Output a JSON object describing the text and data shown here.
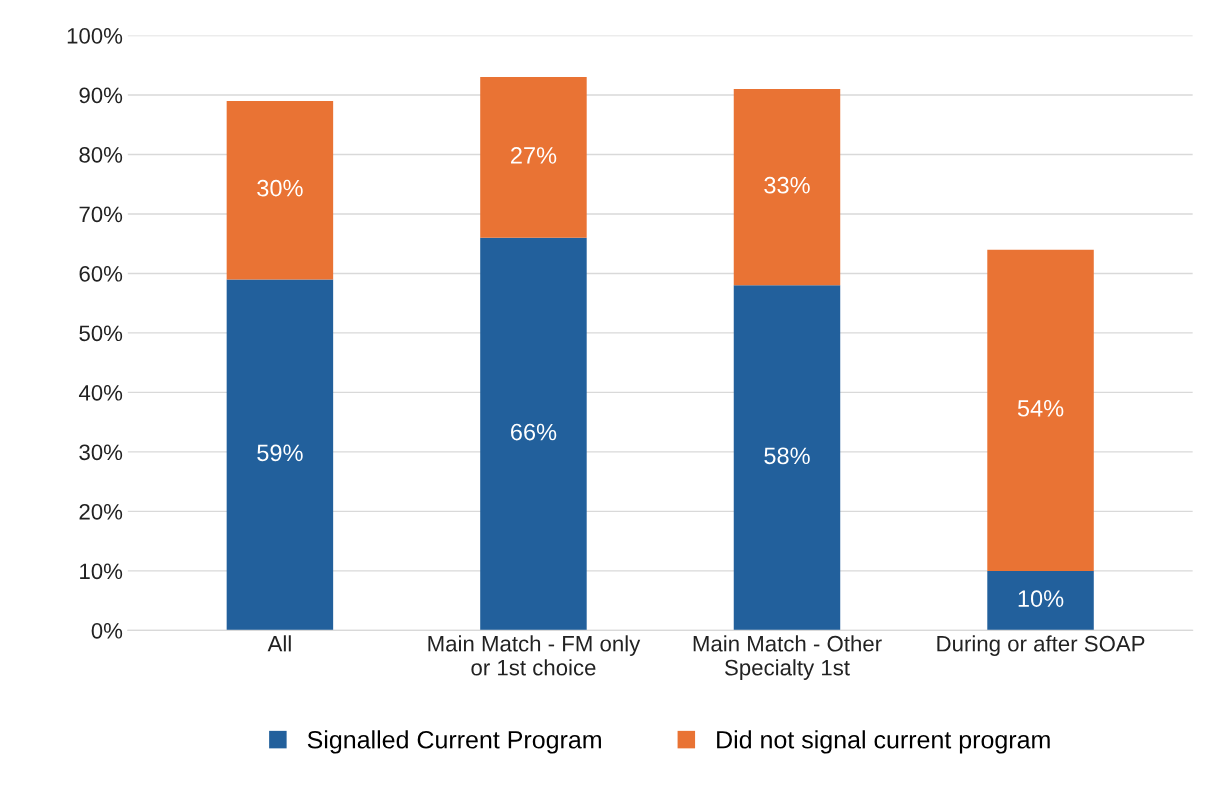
{
  "chart_data": {
    "type": "bar",
    "stacked": true,
    "categories": [
      "All",
      "Main Match - FM only\nor 1st choice",
      "Main Match - Other\nSpecialty 1st",
      "During or after SOAP"
    ],
    "series": [
      {
        "name": "Signalled Current Program",
        "color": "#22609c",
        "values": [
          59,
          66,
          58,
          10
        ],
        "value_labels": [
          "59%",
          "66%",
          "58%",
          "10%"
        ]
      },
      {
        "name": "Did not signal current program",
        "color": "#e97334",
        "values": [
          30,
          27,
          33,
          54
        ],
        "value_labels": [
          "30%",
          "27%",
          "33%",
          "54%"
        ]
      }
    ],
    "ylim": [
      0,
      100
    ],
    "yticks": [
      {
        "value": 0,
        "label": "0%"
      },
      {
        "value": 10,
        "label": "10%"
      },
      {
        "value": 20,
        "label": "20%"
      },
      {
        "value": 30,
        "label": "30%"
      },
      {
        "value": 40,
        "label": "40%"
      },
      {
        "value": 50,
        "label": "50%"
      },
      {
        "value": 60,
        "label": "60%"
      },
      {
        "value": 70,
        "label": "70%"
      },
      {
        "value": 80,
        "label": "80%"
      },
      {
        "value": 90,
        "label": "90%"
      },
      {
        "value": 100,
        "label": "100%"
      }
    ],
    "grid": "y",
    "legend": "bottom"
  }
}
